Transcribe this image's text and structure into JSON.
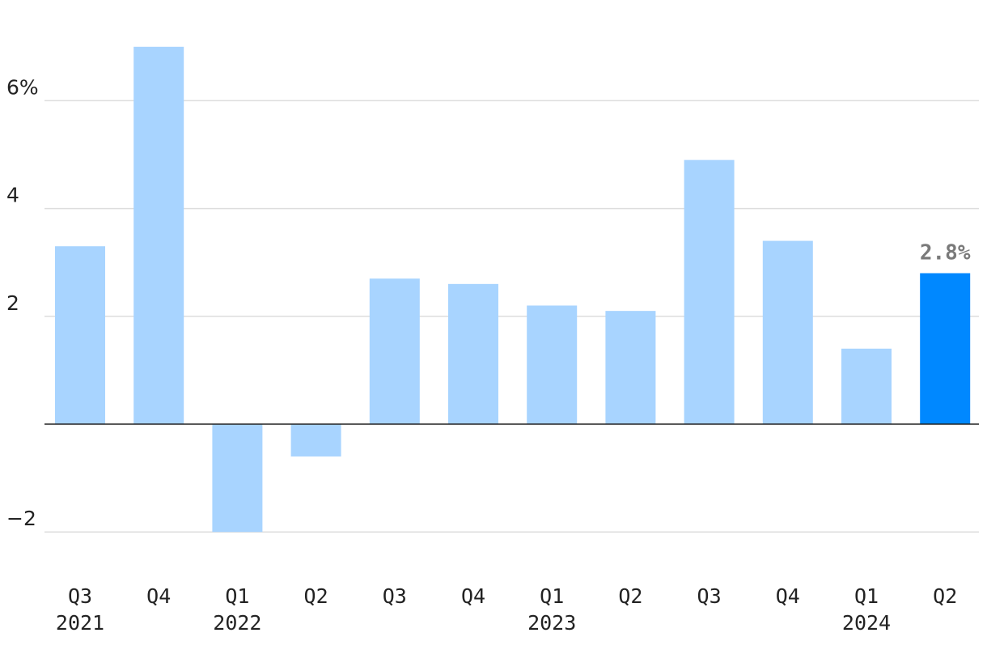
{
  "chart_data": {
    "type": "bar",
    "categories": [
      "Q3",
      "Q4",
      "Q1",
      "Q2",
      "Q3",
      "Q4",
      "Q1",
      "Q2",
      "Q3",
      "Q4",
      "Q1",
      "Q2"
    ],
    "years": [
      "2021",
      "",
      "2022",
      "",
      "",
      "",
      "2023",
      "",
      "",
      "",
      "2024",
      ""
    ],
    "values": [
      3.3,
      7.0,
      -2.0,
      -0.6,
      2.7,
      2.6,
      2.2,
      2.1,
      4.9,
      3.4,
      1.4,
      2.8
    ],
    "y_ticks": [
      -2,
      2,
      4,
      6
    ],
    "y_tick_labels": [
      "−2",
      "2",
      "4",
      "6%"
    ],
    "ylim": [
      -2.8,
      7.6
    ],
    "grid": true,
    "highlight_index": 11,
    "data_labels": [
      {
        "index": 11,
        "text": "2.8%"
      }
    ],
    "colors": {
      "bar": "#a8d4ff",
      "highlight": "#0088ff",
      "label": "#7a7a7a"
    }
  }
}
